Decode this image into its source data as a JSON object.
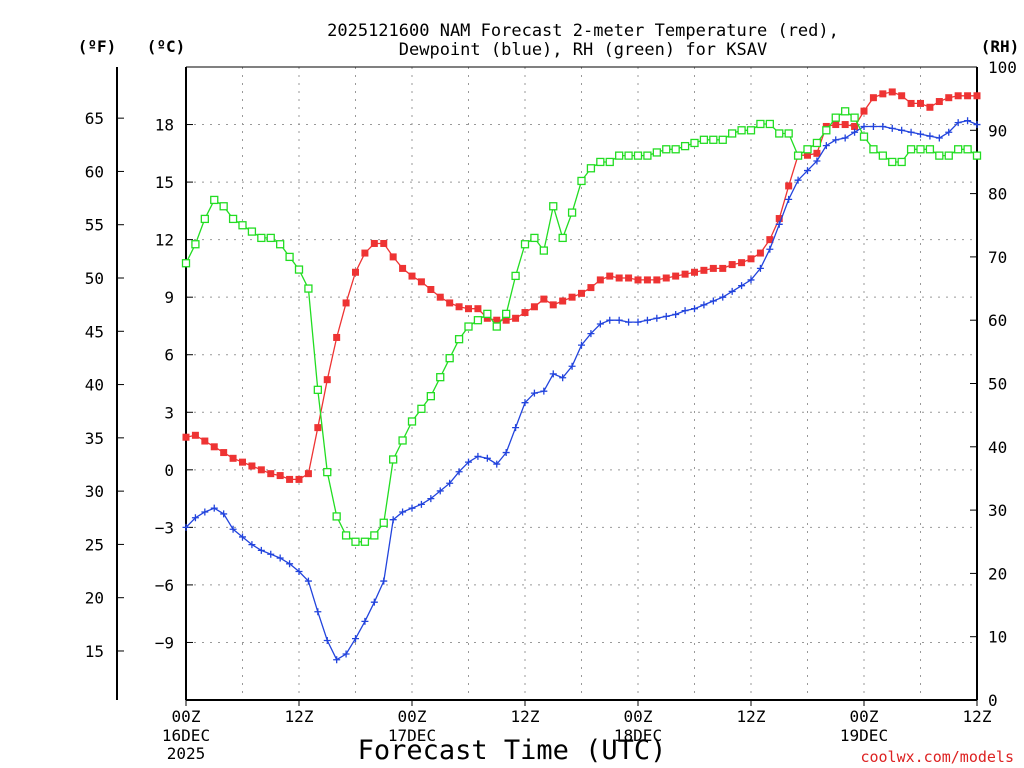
{
  "chart_data": {
    "type": "line",
    "title_line1": "2025121600 NAM Forecast 2-meter Temperature (red),",
    "title_line2": "Dewpoint (blue), RH (green) for KSAV",
    "xlabel": "Forecast Time (UTC)",
    "credit": "coolwx.com/models",
    "unit_f": "(ºF)",
    "unit_c": "(ºC)",
    "unit_rh": "(RH)",
    "x_range_hours": [
      0,
      84
    ],
    "x_ticks": [
      {
        "h": 0,
        "label": "00Z",
        "sub": [
          "16DEC",
          "2025"
        ]
      },
      {
        "h": 12,
        "label": "12Z",
        "sub": []
      },
      {
        "h": 24,
        "label": "00Z",
        "sub": [
          "17DEC"
        ]
      },
      {
        "h": 36,
        "label": "12Z",
        "sub": []
      },
      {
        "h": 48,
        "label": "00Z",
        "sub": [
          "18DEC"
        ]
      },
      {
        "h": 60,
        "label": "12Z",
        "sub": []
      },
      {
        "h": 72,
        "label": "00Z",
        "sub": [
          "19DEC"
        ]
      },
      {
        "h": 84,
        "label": "12Z",
        "sub": []
      }
    ],
    "celsius_axis": {
      "range": [
        -12,
        21
      ],
      "ticks": [
        -9,
        -6,
        -3,
        0,
        3,
        6,
        9,
        12,
        15,
        18
      ]
    },
    "fahrenheit_axis": {
      "ticks": [
        15,
        20,
        25,
        30,
        35,
        40,
        45,
        50,
        55,
        60,
        65
      ]
    },
    "rh_axis": {
      "range": [
        0,
        100
      ],
      "ticks": [
        0,
        10,
        20,
        30,
        40,
        50,
        60,
        70,
        80,
        90,
        100
      ]
    },
    "grid": true,
    "hours": [
      0,
      1,
      2,
      3,
      4,
      5,
      6,
      7,
      8,
      9,
      10,
      11,
      12,
      13,
      14,
      15,
      16,
      17,
      18,
      19,
      20,
      21,
      22,
      23,
      24,
      25,
      26,
      27,
      28,
      29,
      30,
      31,
      32,
      33,
      34,
      35,
      36,
      37,
      38,
      39,
      40,
      41,
      42,
      43,
      44,
      45,
      46,
      47,
      48,
      49,
      50,
      51,
      52,
      53,
      54,
      55,
      56,
      57,
      58,
      59,
      60,
      61,
      62,
      63,
      64,
      65,
      66,
      67,
      68,
      69,
      70,
      71,
      72,
      73,
      74,
      75,
      76,
      77,
      78,
      79,
      80,
      81,
      82,
      83,
      84
    ],
    "series": [
      {
        "name": "Temperature",
        "unit": "C",
        "color": "#ee3333",
        "marker": "filled-square",
        "values": [
          1.7,
          1.8,
          1.5,
          1.2,
          0.9,
          0.6,
          0.4,
          0.2,
          0,
          -0.2,
          -0.3,
          -0.5,
          -0.5,
          -0.2,
          2.2,
          4.7,
          6.9,
          8.7,
          10.3,
          11.3,
          11.8,
          11.8,
          11.1,
          10.5,
          10.1,
          9.8,
          9.4,
          9,
          8.7,
          8.5,
          8.4,
          8.4,
          7.9,
          7.8,
          7.8,
          7.9,
          8.2,
          8.5,
          8.9,
          8.6,
          8.8,
          9,
          9.2,
          9.5,
          9.9,
          10.1,
          10,
          10,
          9.9,
          9.9,
          9.9,
          10,
          10.1,
          10.2,
          10.3,
          10.4,
          10.5,
          10.5,
          10.7,
          10.8,
          11,
          11.3,
          12,
          13.1,
          14.8,
          16.4,
          16.4,
          16.5,
          17.9,
          18,
          18,
          17.9,
          18.7,
          19.4,
          19.6,
          19.7,
          19.5,
          19.1,
          19.1,
          18.9,
          19.2,
          19.4,
          19.5,
          19.5,
          19.5
        ]
      },
      {
        "name": "Dewpoint",
        "unit": "C",
        "color": "#2244dd",
        "marker": "plus",
        "values": [
          -3,
          -2.5,
          -2.2,
          -2,
          -2.3,
          -3.1,
          -3.5,
          -3.9,
          -4.2,
          -4.4,
          -4.6,
          -4.9,
          -5.3,
          -5.8,
          -7.4,
          -8.9,
          -9.9,
          -9.6,
          -8.8,
          -7.9,
          -6.9,
          -5.8,
          -2.6,
          -2.2,
          -2,
          -1.8,
          -1.5,
          -1.1,
          -0.7,
          -0.1,
          0.4,
          0.7,
          0.6,
          0.3,
          0.9,
          2.2,
          3.5,
          4,
          4.1,
          5,
          4.8,
          5.4,
          6.5,
          7.1,
          7.6,
          7.8,
          7.8,
          7.7,
          7.7,
          7.8,
          7.9,
          8,
          8.1,
          8.3,
          8.4,
          8.6,
          8.8,
          9,
          9.3,
          9.6,
          9.9,
          10.5,
          11.5,
          12.8,
          14.1,
          15.1,
          15.6,
          16.1,
          16.9,
          17.2,
          17.3,
          17.6,
          17.9,
          17.9,
          17.9,
          17.8,
          17.7,
          17.6,
          17.5,
          17.4,
          17.3,
          17.6,
          18.1,
          18.2,
          18
        ]
      },
      {
        "name": "RH",
        "unit": "%",
        "color": "#22dd22",
        "marker": "open-square",
        "values": [
          69,
          72,
          76,
          79,
          78,
          76,
          75,
          74,
          73,
          73,
          72,
          70,
          68,
          65,
          49,
          36,
          29,
          26,
          25,
          25,
          26,
          28,
          38,
          41,
          44,
          46,
          48,
          51,
          54,
          57,
          59,
          60,
          61,
          59,
          61,
          67,
          72,
          73,
          71,
          78,
          73,
          77,
          82,
          84,
          85,
          85,
          86,
          86,
          86,
          86,
          86.5,
          87,
          87,
          87.5,
          88,
          88.5,
          88.5,
          88.5,
          89.5,
          90,
          90,
          91,
          91,
          89.5,
          89.5,
          86,
          87,
          88,
          90,
          92,
          93,
          92,
          89,
          87,
          86,
          85,
          85,
          87,
          87,
          87,
          86,
          86,
          87,
          87,
          86
        ]
      }
    ]
  }
}
